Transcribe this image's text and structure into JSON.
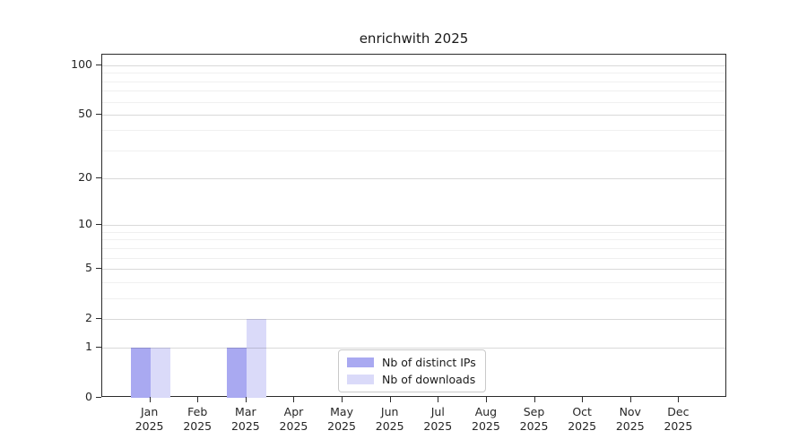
{
  "chart_data": {
    "type": "bar",
    "title": "enrichwith 2025",
    "categories": [
      "Jan",
      "Feb",
      "Mar",
      "Apr",
      "May",
      "Jun",
      "Jul",
      "Aug",
      "Sep",
      "Oct",
      "Nov",
      "Dec"
    ],
    "x_tick_year_line": "2025",
    "series": [
      {
        "name": "Nb of distinct IPs",
        "color": "#a9a9f1",
        "values": [
          1,
          0,
          1,
          0,
          0,
          0,
          0,
          0,
          0,
          0,
          0,
          0
        ]
      },
      {
        "name": "Nb of downloads",
        "color": "#dadaf9",
        "values": [
          1,
          0,
          2,
          0,
          0,
          0,
          0,
          0,
          0,
          0,
          0,
          0
        ]
      }
    ],
    "yaxis": {
      "scale": "log10(value+1)",
      "major_ticks": [
        0,
        1,
        2,
        5,
        10,
        20,
        50,
        100
      ],
      "minor_ticks": [
        3,
        4,
        6,
        7,
        8,
        9,
        30,
        40,
        60,
        70,
        80,
        90
      ],
      "range": [
        0,
        116
      ]
    },
    "xlabel": "",
    "ylabel": "",
    "grid": true,
    "legend_position": "lower center",
    "colors": {
      "major_grid": "rgba(0,0,0,0.15)",
      "minor_grid": "rgba(0,0,0,0.06)",
      "spine": "#2b2b2b",
      "tick_label": "#262626"
    }
  }
}
